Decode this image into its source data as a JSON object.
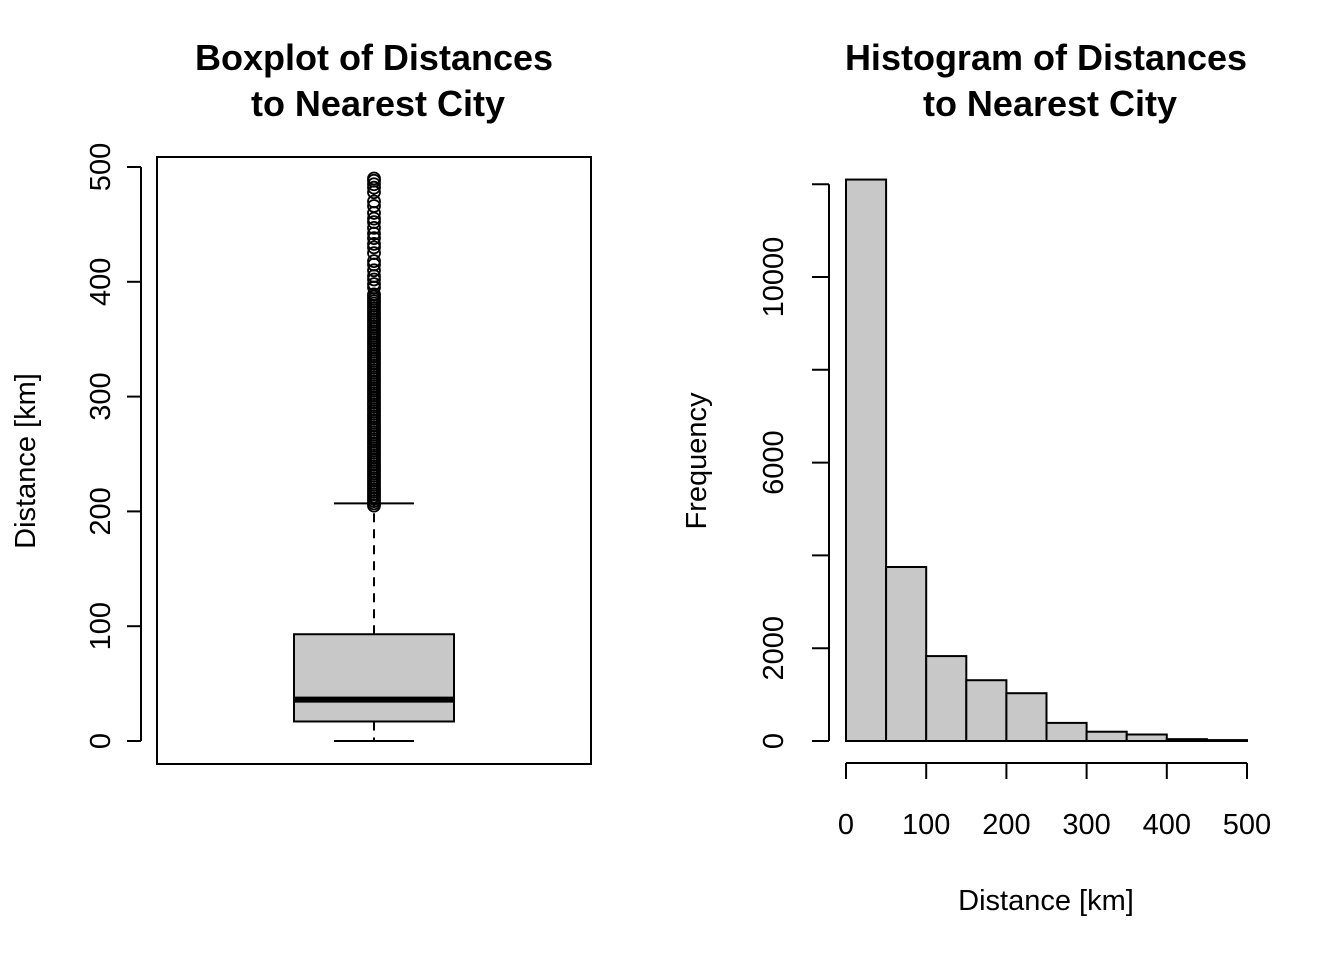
{
  "chart_data": [
    {
      "type": "boxplot",
      "title": [
        "Boxplot of Distances",
        "to Nearest City"
      ],
      "xlabel": "",
      "ylabel": "Distance [km]",
      "ylim": [
        0,
        500
      ],
      "yticks": [
        0,
        100,
        200,
        300,
        400,
        500
      ],
      "box": {
        "whisker_low": 0,
        "q1": 17,
        "median": 36,
        "q3": 93,
        "whisker_high": 207
      },
      "outliers_range": [
        205,
        490
      ],
      "colors": {
        "fill": "#c8c8c8",
        "stroke": "#000000"
      }
    },
    {
      "type": "bar",
      "subtype": "histogram",
      "title": [
        "Histogram of Distances",
        "to Nearest City"
      ],
      "xlabel": "Distance [km]",
      "ylabel": "Frequency",
      "bin_edges": [
        0,
        50,
        100,
        150,
        200,
        250,
        300,
        350,
        400,
        450,
        500
      ],
      "values": [
        12100,
        3750,
        1830,
        1310,
        1030,
        390,
        200,
        140,
        40,
        20
      ],
      "xticks": [
        0,
        100,
        200,
        300,
        400,
        500
      ],
      "yticks": [
        0,
        2000,
        6000,
        10000
      ],
      "ytick_marks": [
        0,
        2000,
        4000,
        6000,
        8000,
        10000,
        12000
      ],
      "colors": {
        "fill": "#c8c8c8",
        "stroke": "#000000"
      }
    }
  ]
}
